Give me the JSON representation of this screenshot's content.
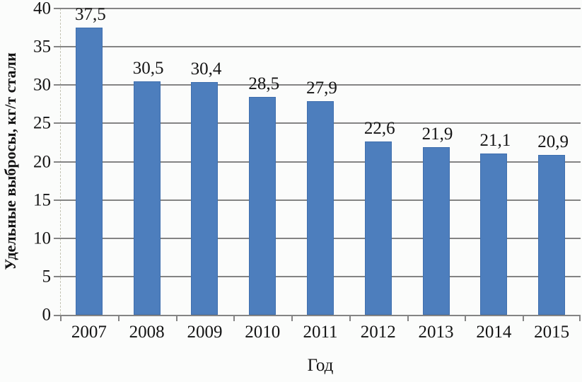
{
  "chart_data": {
    "type": "bar",
    "title": "",
    "categories": [
      "2007",
      "2008",
      "2009",
      "2010",
      "2011",
      "2012",
      "2013",
      "2014",
      "2015"
    ],
    "values": [
      37.5,
      30.5,
      30.4,
      28.5,
      27.9,
      22.6,
      21.9,
      21.1,
      20.9
    ],
    "value_labels": [
      "37,5",
      "30,5",
      "30,4",
      "28,5",
      "27,9",
      "22,6",
      "21,9",
      "21,1",
      "20,9"
    ],
    "xlabel": "Год",
    "ylabel": "Удельные выбросы, кг/т стали",
    "ylim": [
      0,
      40
    ],
    "yticks": [
      0,
      5,
      10,
      15,
      20,
      25,
      30,
      35,
      40
    ],
    "ytick_labels": [
      "0",
      "5",
      "10",
      "15",
      "20",
      "25",
      "30",
      "35",
      "40"
    ],
    "grid": "horizontal",
    "legend": "none",
    "decimal_separator": ",",
    "colors": {
      "bar_fill": "#4d7ebd",
      "bar_border": "#3f6fae",
      "gridline": "#848484",
      "axis": "#848484",
      "text": "#141414",
      "background": "#fbfcfb"
    }
  }
}
